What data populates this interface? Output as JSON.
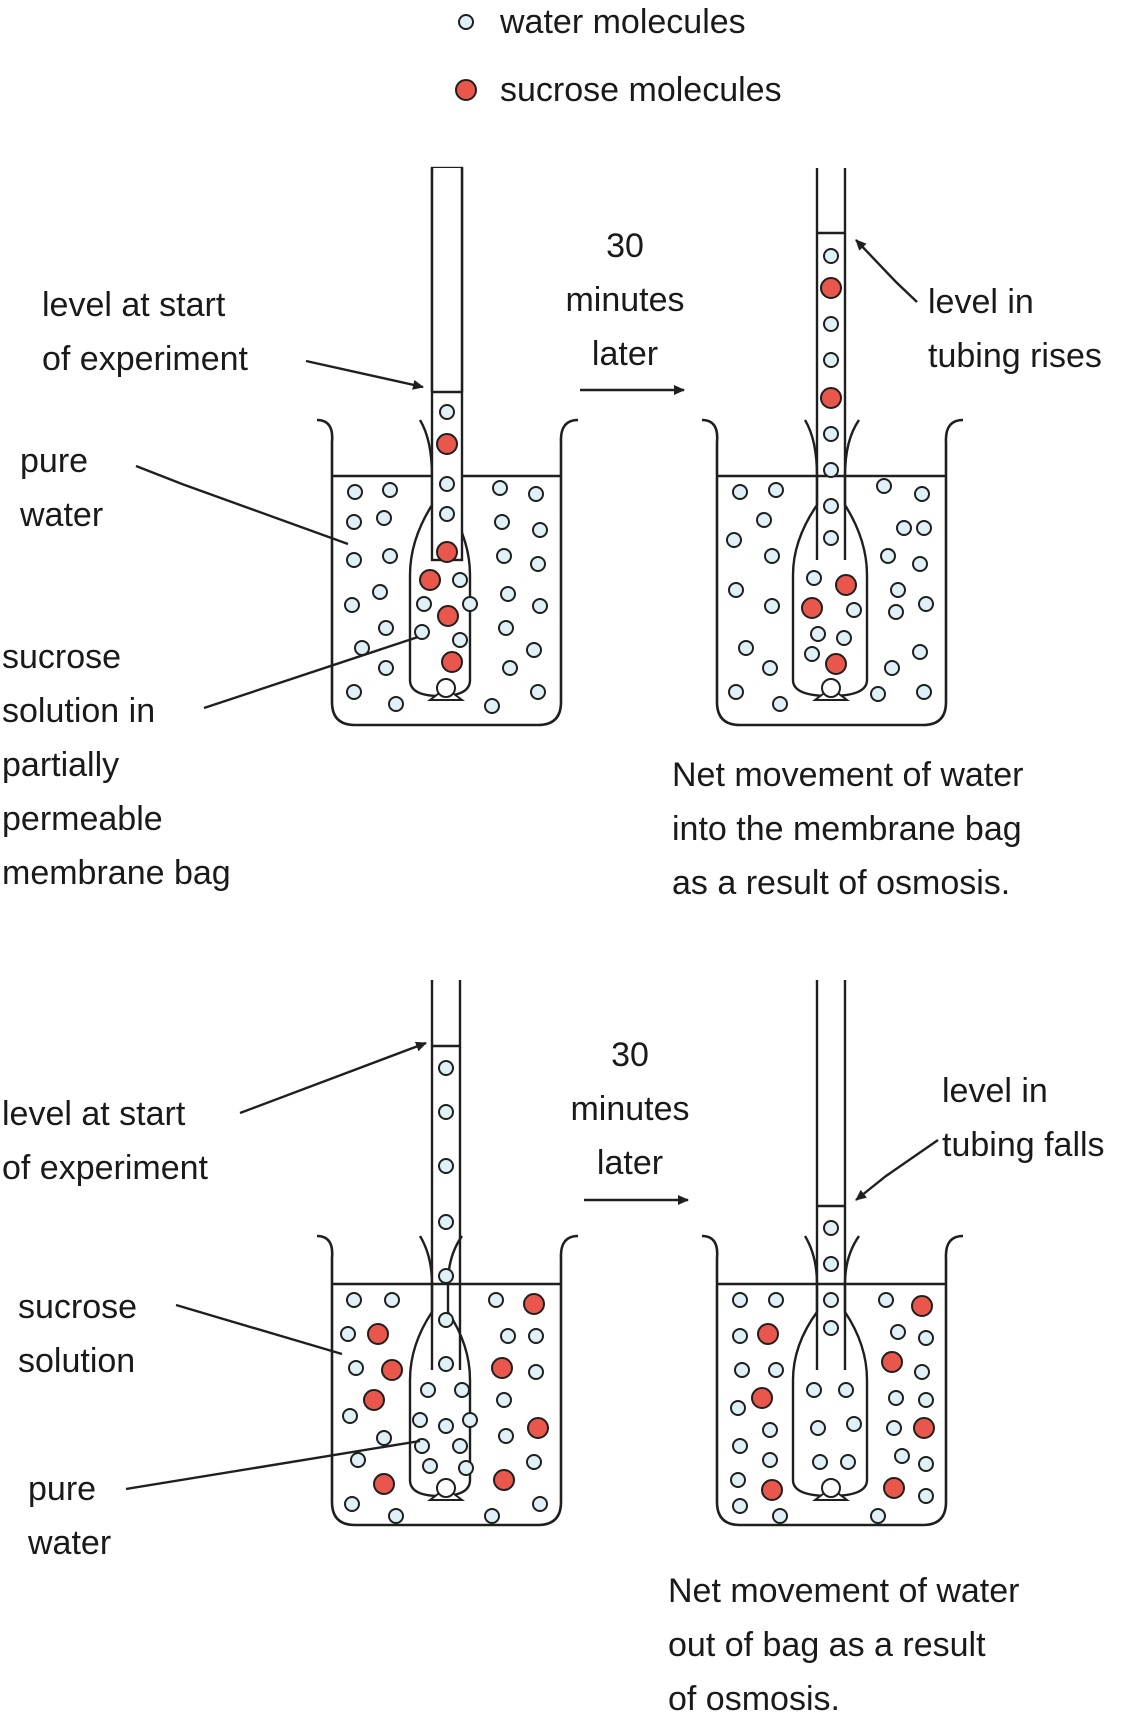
{
  "legend": {
    "water": "water molecules",
    "sucrose": "sucrose molecules"
  },
  "colors": {
    "water_molecule": "#dff1f6",
    "sucrose_molecule": "#e9564c"
  },
  "panel1": {
    "time_label": [
      "30",
      "minutes",
      "later"
    ],
    "level_start": [
      "level at start",
      "of experiment"
    ],
    "pure_water": [
      "pure",
      "water"
    ],
    "bag_label": [
      "sucrose",
      "solution in",
      "partially",
      "permeable",
      "membrane bag"
    ],
    "level_change": [
      "level in",
      "tubing rises"
    ],
    "caption": [
      "Net movement of water",
      "into the membrane bag",
      "as a result of osmosis."
    ]
  },
  "panel2": {
    "time_label": [
      "30",
      "minutes",
      "later"
    ],
    "level_start": [
      "level at start",
      "of experiment"
    ],
    "outer_label": [
      "sucrose",
      "solution"
    ],
    "bag_label": [
      "pure",
      "water"
    ],
    "level_change": [
      "level in",
      "tubing falls"
    ],
    "caption": [
      "Net movement of water",
      "out of bag as a result",
      "of osmosis."
    ]
  }
}
